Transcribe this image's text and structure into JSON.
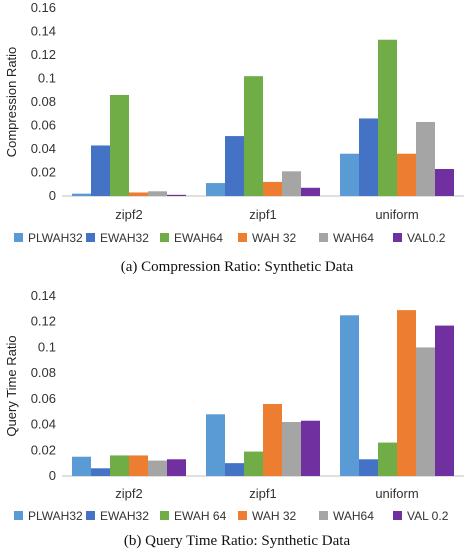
{
  "chart_data": [
    {
      "type": "bar",
      "caption": "(a)  Compression Ratio: Synthetic Data",
      "ylabel": "Compression Ratio",
      "xlabel": "",
      "ylim": [
        0,
        0.16
      ],
      "yticks": [
        "0",
        "0.02",
        "0.04",
        "0.06",
        "0.08",
        "0.1",
        "0.12",
        "0.14",
        "0.16"
      ],
      "ytick_values": [
        0,
        0.02,
        0.04,
        0.06,
        0.08,
        0.1,
        0.12,
        0.14,
        0.16
      ],
      "grid": false,
      "legend": "bottom",
      "categories": [
        "zipf2",
        "zipf1",
        "uniform"
      ],
      "series": [
        {
          "name": "PLWAH32",
          "color": "#5b9bd5",
          "values": [
            0.002,
            0.011,
            0.036
          ]
        },
        {
          "name": "EWAH32",
          "color": "#4472c4",
          "values": [
            0.043,
            0.051,
            0.066
          ]
        },
        {
          "name": "EWAH64",
          "color": "#70ad47",
          "values": [
            0.086,
            0.102,
            0.133
          ]
        },
        {
          "name": "WAH 32",
          "color": "#ed7d31",
          "values": [
            0.003,
            0.012,
            0.036
          ]
        },
        {
          "name": "WAH64",
          "color": "#a5a5a5",
          "values": [
            0.004,
            0.021,
            0.063
          ]
        },
        {
          "name": "VAL0.2",
          "color": "#7030a0",
          "values": [
            0.001,
            0.007,
            0.023
          ]
        }
      ]
    },
    {
      "type": "bar",
      "caption": "(b)  Query Time Ratio: Synthetic Data",
      "ylabel": "Query Time Ratio",
      "xlabel": "",
      "ylim": [
        0,
        0.14
      ],
      "yticks": [
        "0",
        "0.02",
        "0.04",
        "0.06",
        "0.08",
        "0.1",
        "0.12",
        "0.14"
      ],
      "ytick_values": [
        0,
        0.02,
        0.04,
        0.06,
        0.08,
        0.1,
        0.12,
        0.14
      ],
      "grid": false,
      "legend": "bottom",
      "categories": [
        "zipf2",
        "zipf1",
        "uniform"
      ],
      "series": [
        {
          "name": "PLWAH32",
          "color": "#5b9bd5",
          "values": [
            0.015,
            0.048,
            0.125
          ]
        },
        {
          "name": "EWAH32",
          "color": "#4472c4",
          "values": [
            0.006,
            0.01,
            0.013
          ]
        },
        {
          "name": "EWAH 64",
          "color": "#70ad47",
          "values": [
            0.016,
            0.019,
            0.026
          ]
        },
        {
          "name": "WAH 32",
          "color": "#ed7d31",
          "values": [
            0.016,
            0.056,
            0.129
          ]
        },
        {
          "name": "WAH64",
          "color": "#a5a5a5",
          "values": [
            0.012,
            0.042,
            0.1
          ]
        },
        {
          "name": "VAL 0.2",
          "color": "#7030a0",
          "values": [
            0.013,
            0.043,
            0.117
          ]
        }
      ]
    }
  ]
}
